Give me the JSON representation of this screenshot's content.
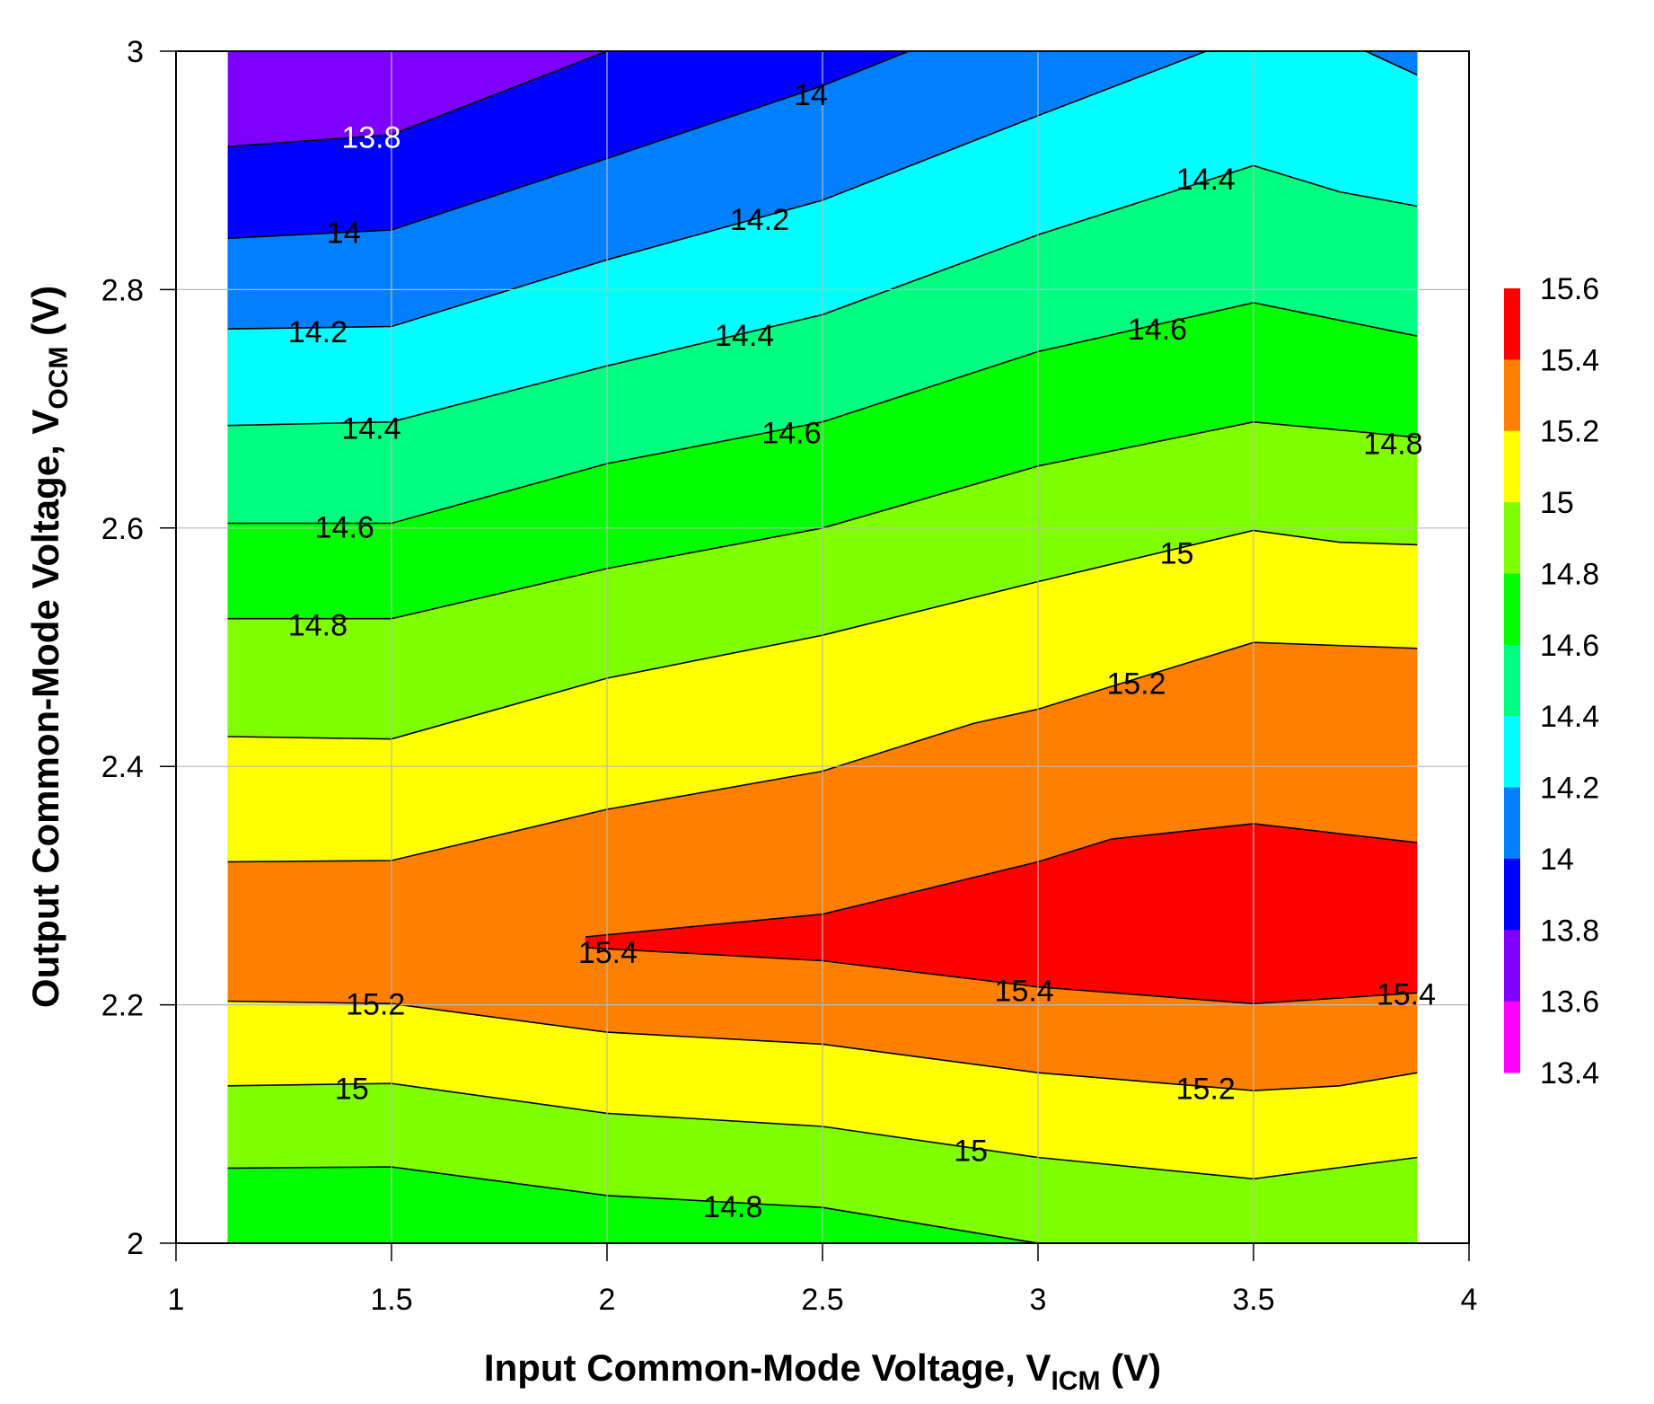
{
  "chart_data": {
    "type": "heatmap",
    "subtype": "filled-contour",
    "xlabel": {
      "main": "Input Common-Mode Voltage, V",
      "sub": "ICM",
      "unit": " (V)"
    },
    "ylabel": {
      "main": "Output Common-Mode Voltage, V",
      "sub": "OCM",
      "unit": " (V)"
    },
    "xlim": [
      1,
      4
    ],
    "ylim": [
      2,
      3
    ],
    "x_ticks": [
      "1",
      "1.5",
      "2",
      "2.5",
      "3",
      "3.5",
      "4"
    ],
    "y_ticks": [
      "2",
      "2.2",
      "2.4",
      "2.6",
      "2.8",
      "3"
    ],
    "grid": true,
    "data_x_range": [
      1.12,
      3.88
    ],
    "levels": [
      13.4,
      13.6,
      13.8,
      14,
      14.2,
      14.4,
      14.6,
      14.8,
      15,
      15.2,
      15.4,
      15.6
    ],
    "colorbar": {
      "labels": [
        "15.6",
        "15.4",
        "15.2",
        "15",
        "14.8",
        "14.6",
        "14.4",
        "14.2",
        "14",
        "13.8",
        "13.6",
        "13.4"
      ],
      "band_colors_top_to_bottom": [
        "#ff0000",
        "#ff8000",
        "#ffff00",
        "#80ff00",
        "#00ff00",
        "#00ff80",
        "#00ffff",
        "#0080ff",
        "#0000ff",
        "#8000ff",
        "#ff00ff"
      ],
      "placement": "right"
    },
    "contour_lines": [
      {
        "level": 13.8,
        "side": "upper",
        "points": [
          [
            1.12,
            2.92
          ],
          [
            1.5,
            2.93
          ],
          [
            2,
            3.0
          ],
          [
            3.88,
            3.1
          ]
        ]
      },
      {
        "level": 14.0,
        "side": "upper",
        "points": [
          [
            1.12,
            2.843
          ],
          [
            1.5,
            2.85
          ],
          [
            2,
            2.91
          ],
          [
            2.5,
            2.971
          ],
          [
            2.7,
            3.0
          ],
          [
            3.88,
            3.1
          ]
        ]
      },
      {
        "level": 14.2,
        "side": "upper",
        "points": [
          [
            1.12,
            2.767
          ],
          [
            1.5,
            2.769
          ],
          [
            2,
            2.825
          ],
          [
            2.5,
            2.875
          ],
          [
            3,
            2.946
          ],
          [
            3.39,
            3.0
          ],
          [
            3.5,
            3.02
          ],
          [
            3.7,
            3.01
          ],
          [
            3.88,
            2.98
          ]
        ]
      },
      {
        "level": 14.4,
        "side": "upper",
        "points": [
          [
            1.12,
            2.686
          ],
          [
            1.5,
            2.689
          ],
          [
            2,
            2.736
          ],
          [
            2.5,
            2.779
          ],
          [
            3,
            2.846
          ],
          [
            3.5,
            2.904
          ],
          [
            3.7,
            2.882
          ],
          [
            3.88,
            2.87
          ]
        ]
      },
      {
        "level": 14.6,
        "side": "upper",
        "points": [
          [
            1.12,
            2.604
          ],
          [
            1.5,
            2.604
          ],
          [
            2,
            2.654
          ],
          [
            2.5,
            2.689
          ],
          [
            3,
            2.748
          ],
          [
            3.5,
            2.789
          ],
          [
            3.88,
            2.761
          ]
        ]
      },
      {
        "level": 14.8,
        "side": "upper",
        "points": [
          [
            1.12,
            2.524
          ],
          [
            1.5,
            2.524
          ],
          [
            2,
            2.566
          ],
          [
            2.5,
            2.6
          ],
          [
            3,
            2.652
          ],
          [
            3.5,
            2.689
          ],
          [
            3.88,
            2.676
          ]
        ]
      },
      {
        "level": 14.8,
        "side": "lower",
        "points": [
          [
            1.12,
            2.063
          ],
          [
            1.5,
            2.064
          ],
          [
            2,
            2.04
          ],
          [
            2.5,
            2.03
          ],
          [
            3,
            2.0
          ],
          [
            3.88,
            2.0
          ]
        ]
      },
      {
        "level": 15.0,
        "side": "upper",
        "points": [
          [
            1.12,
            2.425
          ],
          [
            1.5,
            2.423
          ],
          [
            2,
            2.474
          ],
          [
            2.5,
            2.51
          ],
          [
            3,
            2.555
          ],
          [
            3.5,
            2.598
          ],
          [
            3.7,
            2.588
          ],
          [
            3.88,
            2.586
          ]
        ]
      },
      {
        "level": 15.0,
        "side": "lower",
        "points": [
          [
            1.12,
            2.132
          ],
          [
            1.5,
            2.134
          ],
          [
            2,
            2.109
          ],
          [
            2.5,
            2.098
          ],
          [
            3,
            2.072
          ],
          [
            3.5,
            2.054
          ],
          [
            3.88,
            2.072
          ]
        ]
      },
      {
        "level": 15.2,
        "side": "upper",
        "points": [
          [
            1.12,
            2.32
          ],
          [
            1.5,
            2.321
          ],
          [
            2,
            2.364
          ],
          [
            2.5,
            2.396
          ],
          [
            2.85,
            2.436
          ],
          [
            3,
            2.448
          ],
          [
            3.5,
            2.504
          ],
          [
            3.88,
            2.499
          ]
        ]
      },
      {
        "level": 15.2,
        "side": "lower",
        "points": [
          [
            1.12,
            2.203
          ],
          [
            1.5,
            2.201
          ],
          [
            2,
            2.177
          ],
          [
            2.5,
            2.167
          ],
          [
            3,
            2.143
          ],
          [
            3.5,
            2.128
          ],
          [
            3.7,
            2.132
          ],
          [
            3.88,
            2.143
          ]
        ]
      },
      {
        "level": 15.4,
        "side": "upper",
        "points": [
          [
            1.95,
            2.257
          ],
          [
            2.5,
            2.276
          ],
          [
            3,
            2.32
          ],
          [
            3.17,
            2.339
          ],
          [
            3.5,
            2.352
          ],
          [
            3.88,
            2.336
          ]
        ]
      },
      {
        "level": 15.4,
        "side": "lower",
        "points": [
          [
            1.95,
            2.248
          ],
          [
            2.5,
            2.237
          ],
          [
            3,
            2.215
          ],
          [
            3.5,
            2.201
          ],
          [
            3.88,
            2.21
          ]
        ]
      }
    ],
    "contour_labels": [
      {
        "text": "13.8",
        "x": 1.453,
        "y": 2.928,
        "color": "#ffffff"
      },
      {
        "text": "14",
        "x": 2.473,
        "y": 2.964,
        "color": "#000000"
      },
      {
        "text": "14",
        "x": 1.389,
        "y": 2.848,
        "color": "#000000"
      },
      {
        "text": "14.2",
        "x": 1.329,
        "y": 2.765,
        "color": "#000000"
      },
      {
        "text": "14.2",
        "x": 2.354,
        "y": 2.859,
        "color": "#000000"
      },
      {
        "text": "14.4",
        "x": 3.389,
        "y": 2.893,
        "color": "#000000"
      },
      {
        "text": "14.4",
        "x": 1.453,
        "y": 2.684,
        "color": "#000000"
      },
      {
        "text": "14.4",
        "x": 2.319,
        "y": 2.762,
        "color": "#000000"
      },
      {
        "text": "14.6",
        "x": 1.391,
        "y": 2.601,
        "color": "#000000"
      },
      {
        "text": "14.6",
        "x": 2.428,
        "y": 2.68,
        "color": "#000000"
      },
      {
        "text": "14.6",
        "x": 3.277,
        "y": 2.767,
        "color": "#000000"
      },
      {
        "text": "14.8",
        "x": 1.329,
        "y": 2.519,
        "color": "#000000"
      },
      {
        "text": "14.8",
        "x": 3.824,
        "y": 2.671,
        "color": "#000000"
      },
      {
        "text": "15",
        "x": 3.322,
        "y": 2.579,
        "color": "#000000"
      },
      {
        "text": "15.2",
        "x": 3.228,
        "y": 2.47,
        "color": "#000000"
      },
      {
        "text": "15.4",
        "x": 2.002,
        "y": 2.244,
        "color": "#000000"
      },
      {
        "text": "15.4",
        "x": 2.968,
        "y": 2.212,
        "color": "#000000"
      },
      {
        "text": "15.4",
        "x": 3.854,
        "y": 2.209,
        "color": "#000000"
      },
      {
        "text": "15.2",
        "x": 1.463,
        "y": 2.201,
        "color": "#000000"
      },
      {
        "text": "15.2",
        "x": 3.389,
        "y": 2.13,
        "color": "#000000"
      },
      {
        "text": "15",
        "x": 1.408,
        "y": 2.13,
        "color": "#000000"
      },
      {
        "text": "15",
        "x": 2.844,
        "y": 2.078,
        "color": "#000000"
      },
      {
        "text": "14.8",
        "x": 2.292,
        "y": 2.031,
        "color": "#000000"
      }
    ]
  }
}
